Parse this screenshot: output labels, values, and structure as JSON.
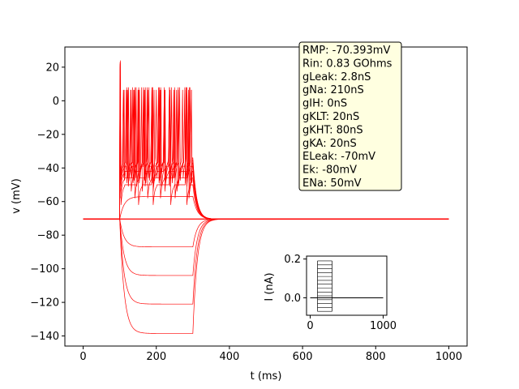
{
  "chart_data": [
    {
      "type": "line",
      "panel": "main",
      "xlabel": "t (ms)",
      "ylabel": "v (mV)",
      "xlim": [
        -50,
        1050
      ],
      "ylim": [
        -146,
        32
      ],
      "xticks": [
        0,
        200,
        400,
        600,
        800,
        1000
      ],
      "yticks": [
        -140,
        -120,
        -100,
        -80,
        -60,
        -40,
        -20,
        0,
        20
      ],
      "grid": false,
      "line_color": "#ff0000",
      "rest_mV": -70.4,
      "stim_on_ms": 100,
      "stim_off_ms": 300,
      "hyperpolarized_steady_mV": [
        -138.5,
        -121,
        -104,
        -87
      ],
      "subthreshold_steady_mV": [
        -57
      ],
      "spiking_traces": [
        {
          "plateau_mV": -50,
          "spike_times_ms": [
            102,
            150,
            190,
            238,
            282
          ]
        },
        {
          "plateau_mV": -46,
          "spike_times_ms": [
            101,
            140,
            175,
            210,
            250,
            288
          ]
        },
        {
          "plateau_mV": -42,
          "spike_times_ms": [
            101,
            130,
            160,
            190,
            222,
            255,
            290
          ]
        },
        {
          "plateau_mV": -39,
          "spike_times_ms": [
            101,
            122,
            145,
            168,
            190,
            213,
            236,
            259,
            282
          ]
        },
        {
          "plateau_mV": -37,
          "spike_times_ms": [
            101,
            118,
            135,
            152,
            170,
            188,
            206,
            224,
            242,
            260,
            278,
            296
          ]
        },
        {
          "plateau_mV": -35.5,
          "spike_times_ms": [
            100.5,
            112,
            124,
            138,
            152,
            166,
            180,
            194,
            208,
            222,
            236,
            250,
            264,
            278,
            292
          ]
        },
        {
          "plateau_mV": -34,
          "spike_times_ms": [
            100.5,
            110,
            120,
            131,
            142,
            154,
            165,
            177,
            188,
            200,
            212,
            224,
            236,
            248,
            260,
            272,
            284,
            296
          ]
        }
      ],
      "peak_mV": 8,
      "first_spike_peak_mV": 24
    },
    {
      "type": "line",
      "panel": "inset",
      "xlabel": "",
      "ylabel": "I (nA)",
      "xlim": [
        -50,
        1050
      ],
      "ylim": [
        -0.09,
        0.215
      ],
      "xticks": [
        0,
        1000
      ],
      "yticks": [
        0.0,
        0.2
      ],
      "line_color": "#000000",
      "stim_on_ms": 100,
      "stim_off_ms": 300,
      "current_steps_nA": [
        -0.07,
        -0.05,
        -0.03,
        -0.01,
        0.01,
        0.03,
        0.05,
        0.07,
        0.09,
        0.11,
        0.13,
        0.15,
        0.17,
        0.19
      ]
    }
  ],
  "info_box": {
    "lines": [
      "RMP: -70.393mV",
      "Rin: 0.83 GOhms",
      "gLeak: 2.8nS",
      "gNa: 210nS",
      "gIH: 0nS",
      "gKLT: 20nS",
      "gKHT: 80nS",
      "gKA: 20nS",
      "ELeak: -70mV",
      "Ek: -80mV",
      "ENa: 50mV"
    ],
    "fill": "#ffffe0"
  }
}
